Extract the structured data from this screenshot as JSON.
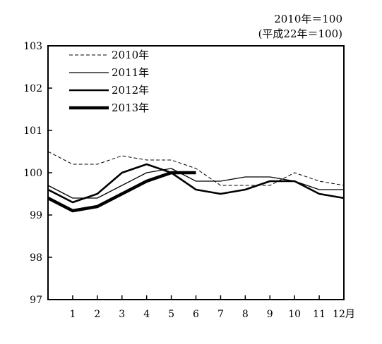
{
  "chart_data": {
    "type": "line",
    "notes": [
      "2010年＝100",
      "(平成22年＝100)"
    ],
    "x_ticks": [
      "1",
      "2",
      "3",
      "4",
      "5",
      "6",
      "7",
      "8",
      "9",
      "10",
      "11",
      "12月"
    ],
    "y_ticks": [
      "103",
      "102",
      "101",
      "100",
      "99",
      "98",
      "97"
    ],
    "ylim": [
      97,
      103
    ],
    "xlim": [
      0,
      12
    ],
    "grid": false,
    "legend_position": "top-left",
    "series": [
      {
        "name": "2010年",
        "style": "dashed",
        "weight": 1,
        "x": [
          0,
          1,
          2,
          3,
          4,
          5,
          6,
          7,
          8,
          9,
          10,
          11,
          12
        ],
        "values": [
          100.5,
          100.2,
          100.2,
          100.4,
          100.3,
          100.3,
          100.1,
          99.7,
          99.7,
          99.7,
          100.0,
          99.8,
          99.7
        ]
      },
      {
        "name": "2011年",
        "style": "solid",
        "weight": 1.3,
        "x": [
          0,
          1,
          2,
          3,
          4,
          5,
          6,
          7,
          8,
          9,
          10,
          11,
          12
        ],
        "values": [
          99.7,
          99.4,
          99.4,
          99.7,
          100.0,
          100.1,
          99.8,
          99.8,
          99.9,
          99.9,
          99.8,
          99.6,
          99.6
        ]
      },
      {
        "name": "2012年",
        "style": "solid",
        "weight": 2.6,
        "x": [
          0,
          1,
          2,
          3,
          4,
          5,
          6,
          7,
          8,
          9,
          10,
          11,
          12
        ],
        "values": [
          99.6,
          99.3,
          99.5,
          100.0,
          100.2,
          100.0,
          99.6,
          99.5,
          99.6,
          99.8,
          99.8,
          99.5,
          99.4
        ]
      },
      {
        "name": "2013年",
        "style": "solid",
        "weight": 4.5,
        "x": [
          0,
          1,
          2,
          3,
          4,
          5,
          6
        ],
        "values": [
          99.4,
          99.1,
          99.2,
          99.5,
          99.8,
          100.0,
          100.0
        ]
      }
    ]
  }
}
